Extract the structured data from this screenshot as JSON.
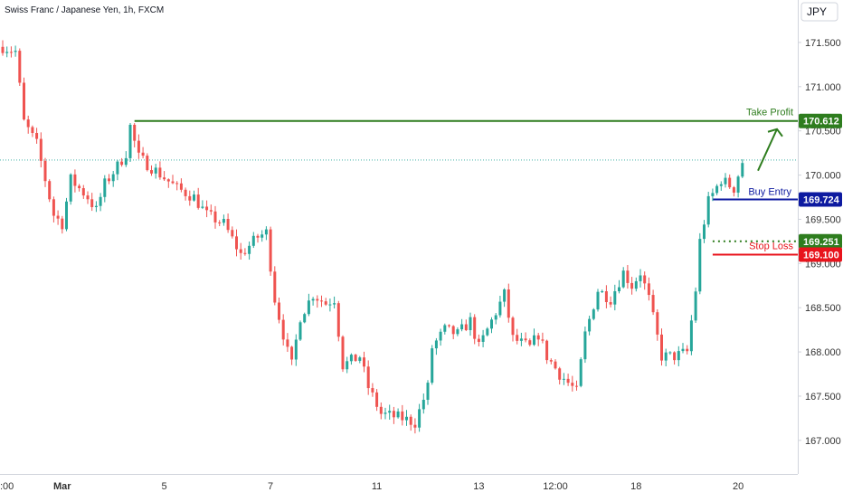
{
  "title": "Swiss Franc / Japanese Yen, 1h, FXCM",
  "currency_label": "JPY",
  "colors": {
    "up": "#26a69a",
    "down": "#ef5350",
    "take_profit": "#2e7d1e",
    "buy_entry": "#0d1aa0",
    "stop_loss": "#e8141c",
    "last_price_line": "#26a69a",
    "axis_text": "#333333",
    "grid": "#e0e3eb"
  },
  "annotations": {
    "take_profit": {
      "label": "Take Profit",
      "price": 170.612,
      "price_text": "170.612"
    },
    "buy_entry": {
      "label": "Buy Entry",
      "price": 169.724,
      "price_text": "169.724"
    },
    "stop_loss": {
      "label": "Stop Loss",
      "price": 169.1,
      "price_text": "169.100"
    },
    "last_price": {
      "price": 169.251,
      "price_text": "169.251"
    }
  },
  "chart_data": {
    "type": "candlestick",
    "title": "Swiss Franc / Japanese Yen, 1h, FXCM",
    "y_axis": {
      "unit": "JPY",
      "ticks": [
        {
          "value": 171.5,
          "label": "171.500"
        },
        {
          "value": 171.0,
          "label": "171.000"
        },
        {
          "value": 170.5,
          "label": "170.500"
        },
        {
          "value": 170.0,
          "label": "170.000"
        },
        {
          "value": 169.5,
          "label": "169.500"
        },
        {
          "value": 169.0,
          "label": "169.000"
        },
        {
          "value": 168.5,
          "label": "168.500"
        },
        {
          "value": 168.0,
          "label": "168.000"
        },
        {
          "value": 167.5,
          "label": "167.500"
        },
        {
          "value": 167.0,
          "label": "167.000"
        }
      ],
      "range": [
        166.62,
        171.98
      ]
    },
    "x_axis": {
      "ticks": [
        {
          "bar": 0,
          "label": ":00"
        },
        {
          "bar": 14,
          "label": "Mar"
        },
        {
          "bar": 38,
          "label": "5"
        },
        {
          "bar": 63,
          "label": "7"
        },
        {
          "bar": 88,
          "label": "11"
        },
        {
          "bar": 112,
          "label": "13"
        },
        {
          "bar": 130,
          "label": "12:00"
        },
        {
          "bar": 149,
          "label": "18"
        },
        {
          "bar": 173,
          "label": "20"
        }
      ]
    },
    "bar_count": 185,
    "series": [
      {
        "type": "candlestick",
        "keypoints": [
          [
            0,
            171.45
          ],
          [
            3,
            171.4
          ],
          [
            5,
            170.6
          ],
          [
            8,
            170.35
          ],
          [
            12,
            169.55
          ],
          [
            14,
            169.45
          ],
          [
            16,
            169.95
          ],
          [
            20,
            169.75
          ],
          [
            22,
            169.6
          ],
          [
            24,
            169.9
          ],
          [
            27,
            170.1
          ],
          [
            29,
            170.25
          ],
          [
            30,
            170.55
          ],
          [
            32,
            170.2
          ],
          [
            36,
            170.05
          ],
          [
            41,
            169.85
          ],
          [
            45,
            169.75
          ],
          [
            48,
            169.55
          ],
          [
            52,
            169.45
          ],
          [
            56,
            169.1
          ],
          [
            60,
            169.3
          ],
          [
            62,
            169.35
          ],
          [
            64,
            168.6
          ],
          [
            67,
            168.0
          ],
          [
            68,
            167.85
          ],
          [
            70,
            168.4
          ],
          [
            73,
            168.65
          ],
          [
            76,
            168.55
          ],
          [
            78,
            168.6
          ],
          [
            80,
            167.85
          ],
          [
            84,
            167.95
          ],
          [
            86,
            167.6
          ],
          [
            89,
            167.3
          ],
          [
            94,
            167.25
          ],
          [
            97,
            167.2
          ],
          [
            100,
            167.6
          ],
          [
            101,
            168.05
          ],
          [
            104,
            168.25
          ],
          [
            107,
            168.2
          ],
          [
            110,
            168.35
          ],
          [
            112,
            168.05
          ],
          [
            115,
            168.35
          ],
          [
            118,
            168.65
          ],
          [
            120,
            168.15
          ],
          [
            124,
            168.05
          ],
          [
            126,
            168.2
          ],
          [
            128,
            167.95
          ],
          [
            131,
            167.75
          ],
          [
            135,
            167.55
          ],
          [
            137,
            168.2
          ],
          [
            140,
            168.7
          ],
          [
            143,
            168.6
          ],
          [
            146,
            168.9
          ],
          [
            148,
            168.75
          ],
          [
            150,
            168.9
          ],
          [
            152,
            168.6
          ],
          [
            155,
            167.95
          ],
          [
            158,
            167.95
          ],
          [
            161,
            168.0
          ],
          [
            163,
            168.7
          ],
          [
            164,
            169.25
          ],
          [
            166,
            169.7
          ],
          [
            169,
            169.95
          ],
          [
            172,
            169.85
          ],
          [
            174,
            170.15
          ]
        ]
      }
    ]
  }
}
